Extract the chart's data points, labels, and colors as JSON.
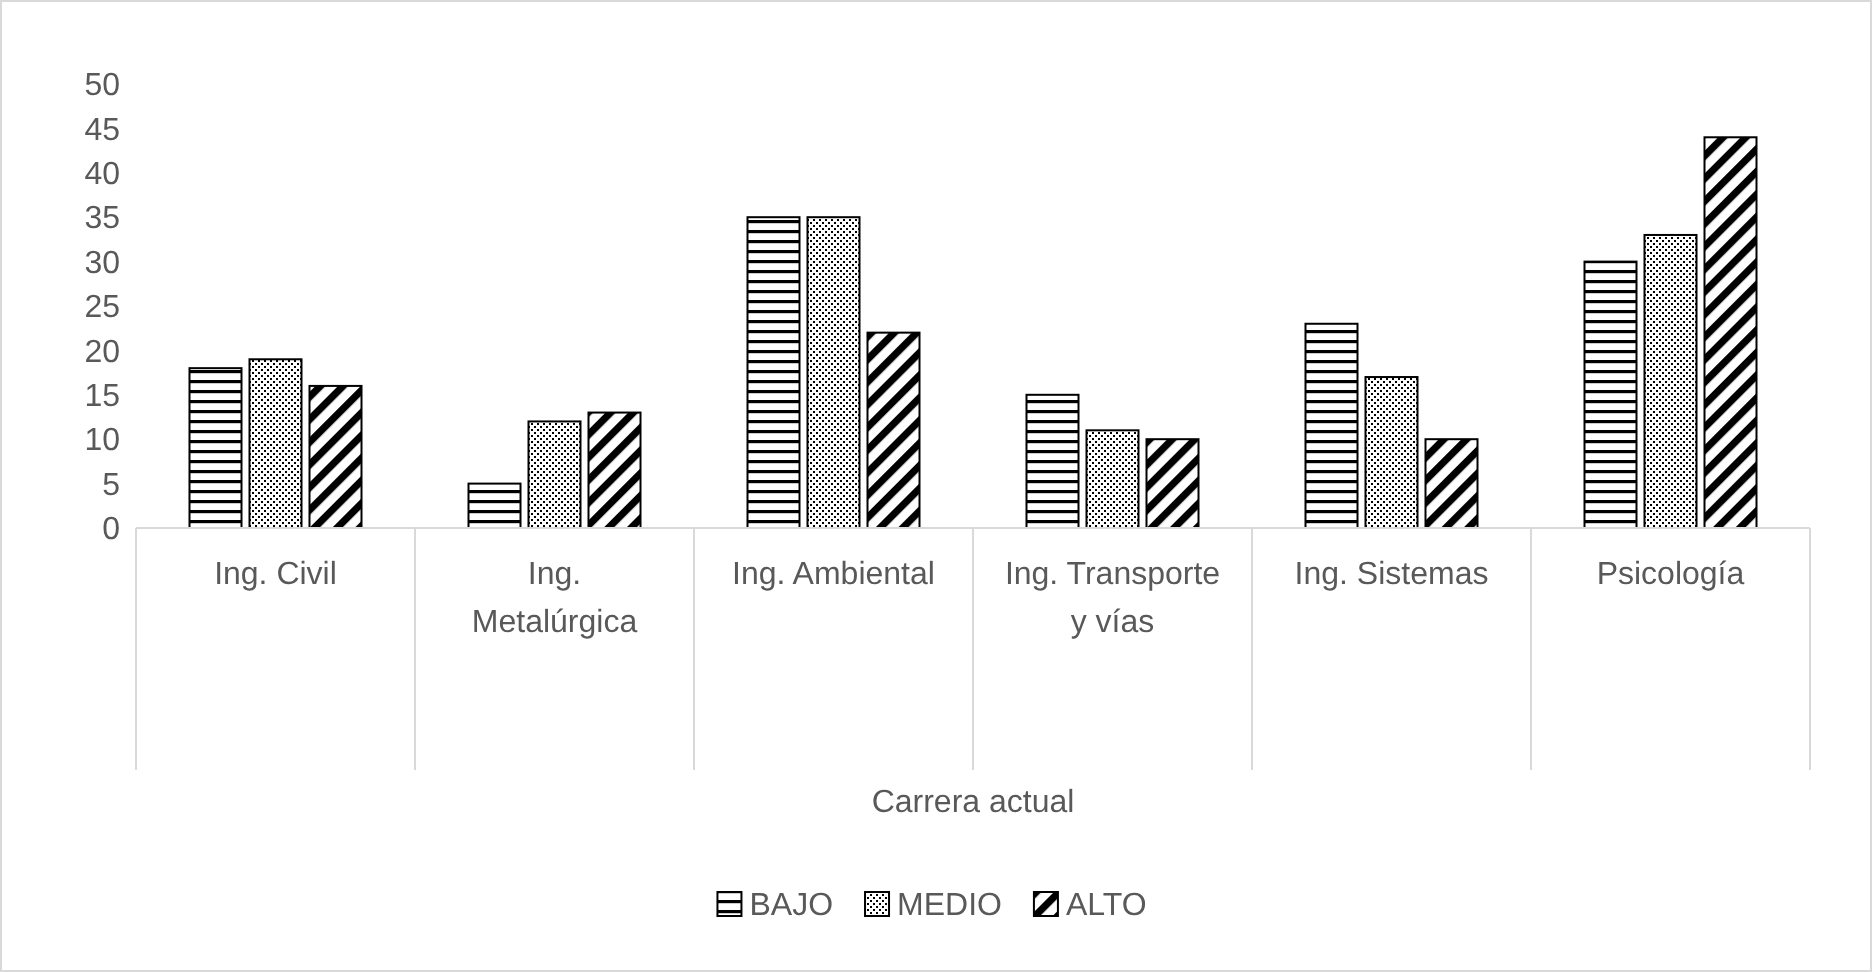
{
  "chart_data": {
    "type": "bar",
    "xlabel": "Carrera actual",
    "categories": [
      "Ing. Civil",
      "Ing. Metalúrgica",
      "Ing. Ambiental",
      "Ing. Transporte y vías",
      "Ing. Sistemas",
      "Psicología"
    ],
    "series": [
      {
        "name": "BAJO",
        "color": "#000000",
        "values": [
          18,
          5,
          35,
          15,
          23,
          30
        ]
      },
      {
        "name": "MEDIO",
        "color": "#000000",
        "values": [
          19,
          12,
          35,
          11,
          17,
          33
        ]
      },
      {
        "name": "ALTO",
        "color": "#000000",
        "values": [
          16,
          13,
          22,
          10,
          10,
          44
        ]
      }
    ],
    "ylim": [
      0,
      50
    ],
    "yticks": [
      0,
      5,
      10,
      15,
      20,
      25,
      30,
      35,
      40,
      45,
      50
    ],
    "grid": false,
    "legend": "bottom"
  }
}
